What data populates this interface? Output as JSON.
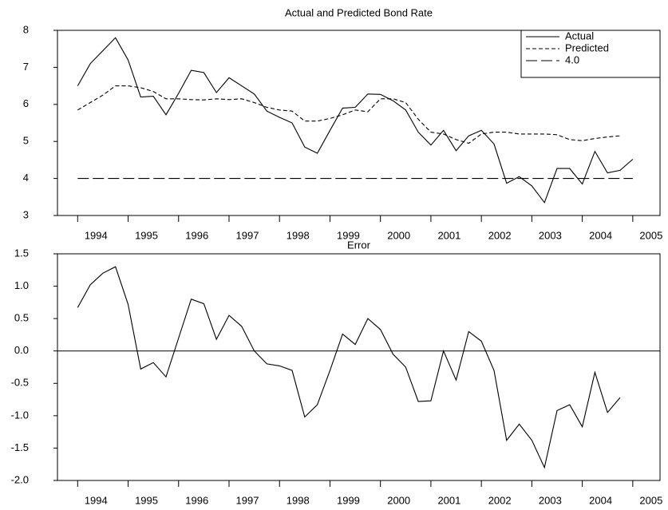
{
  "chart_data": [
    {
      "type": "line",
      "title": "Actual and Predicted Bond Rate",
      "x": [
        1994,
        1994.25,
        1994.5,
        1994.75,
        1995,
        1995.25,
        1995.5,
        1995.75,
        1996,
        1996.25,
        1996.5,
        1996.75,
        1997,
        1997.25,
        1997.5,
        1997.75,
        1998,
        1998.25,
        1998.5,
        1998.75,
        1999,
        1999.25,
        1999.5,
        1999.75,
        2000,
        2000.25,
        2000.5,
        2000.75,
        2001,
        2001.25,
        2001.5,
        2001.75,
        2002,
        2002.25,
        2002.5,
        2002.75,
        2003,
        2003.25,
        2003.5,
        2003.75,
        2004,
        2004.25,
        2004.5,
        2004.75,
        2005
      ],
      "series": [
        {
          "name": "Actual",
          "color": "#000000",
          "dash": "solid",
          "values": [
            6.5,
            7.1,
            7.45,
            7.8,
            7.2,
            6.2,
            6.22,
            5.72,
            6.3,
            6.92,
            6.86,
            6.32,
            6.72,
            6.5,
            6.28,
            5.82,
            5.65,
            5.5,
            4.85,
            4.68,
            5.3,
            5.9,
            5.92,
            6.28,
            6.27,
            6.1,
            5.85,
            5.25,
            4.9,
            5.3,
            4.75,
            5.15,
            5.3,
            4.93,
            3.87,
            4.05,
            3.8,
            3.35,
            4.27,
            4.27,
            3.85,
            4.73,
            4.15,
            4.22,
            4.52
          ]
        },
        {
          "name": "Predicted",
          "color": "#000000",
          "dash": "dashed",
          "values": [
            5.85,
            6.05,
            6.25,
            6.5,
            6.5,
            6.45,
            6.35,
            6.15,
            6.15,
            6.13,
            6.12,
            6.15,
            6.13,
            6.15,
            6.05,
            5.92,
            5.85,
            5.82,
            5.55,
            5.55,
            5.62,
            5.72,
            5.85,
            5.8,
            6.15,
            6.15,
            6.05,
            5.6,
            5.25,
            5.2,
            5.05,
            4.95,
            5.2,
            5.25,
            5.25,
            5.2,
            5.2,
            5.2,
            5.18,
            5.05,
            5.02,
            5.08,
            5.12,
            5.15,
            null
          ]
        },
        {
          "name": "4.0",
          "color": "#000000",
          "dash": "longdash",
          "values": [
            4,
            4,
            4,
            4,
            4,
            4,
            4,
            4,
            4,
            4,
            4,
            4,
            4,
            4,
            4,
            4,
            4,
            4,
            4,
            4,
            4,
            4,
            4,
            4,
            4,
            4,
            4,
            4,
            4,
            4,
            4,
            4,
            4,
            4,
            4,
            4,
            4,
            4,
            4,
            4,
            4,
            4,
            4,
            4,
            4
          ]
        }
      ],
      "xlim": [
        1993.6,
        2005.54
      ],
      "xticks": [
        1994,
        1995,
        1996,
        1997,
        1998,
        1999,
        2000,
        2001,
        2002,
        2003,
        2004,
        2005
      ],
      "ylim": [
        3,
        8
      ],
      "yticks": [
        3,
        4,
        5,
        6,
        7,
        8
      ],
      "legend": "top-right"
    },
    {
      "type": "line",
      "title": "Error",
      "x": [
        1994,
        1994.25,
        1994.5,
        1994.75,
        1995,
        1995.25,
        1995.5,
        1995.75,
        1996,
        1996.25,
        1996.5,
        1996.75,
        1997,
        1997.25,
        1997.5,
        1997.75,
        1998,
        1998.25,
        1998.5,
        1998.75,
        1999,
        1999.25,
        1999.5,
        1999.75,
        2000,
        2000.25,
        2000.5,
        2000.75,
        2001,
        2001.25,
        2001.5,
        2001.75,
        2002,
        2002.25,
        2002.5,
        2002.75,
        2003,
        2003.25,
        2003.5,
        2003.75,
        2004,
        2004.25,
        2004.5,
        2004.75
      ],
      "series": [
        {
          "color": "#000000",
          "dash": "solid",
          "values": [
            0.67,
            1.02,
            1.2,
            1.3,
            0.72,
            -0.28,
            -0.18,
            -0.4,
            0.2,
            0.8,
            0.73,
            0.18,
            0.55,
            0.38,
            0,
            -0.2,
            -0.23,
            -0.3,
            -1.02,
            -0.83,
            -0.3,
            0.26,
            0.1,
            0.5,
            0.33,
            -0.05,
            -0.25,
            -0.78,
            -0.77,
            0,
            -0.45,
            0.3,
            0.15,
            -0.3,
            -1.38,
            -1.13,
            -1.38,
            -1.8,
            -0.92,
            -0.83,
            -1.17,
            -0.33,
            -0.95,
            -0.72
          ]
        }
      ],
      "xlim": [
        1993.6,
        2005.54
      ],
      "xticks": [
        1994,
        1995,
        1996,
        1997,
        1998,
        1999,
        2000,
        2001,
        2002,
        2003,
        2004,
        2005
      ],
      "ylim": [
        -2,
        1.5
      ],
      "yticks": [
        {
          "value": -2,
          "label": "-2.0"
        },
        {
          "value": -1.5,
          "label": "-1.5"
        },
        {
          "value": -1,
          "label": "-1.0"
        },
        {
          "value": -0.5,
          "label": "-0.5"
        },
        {
          "value": 0,
          "label": "0.0"
        },
        {
          "value": 0.5,
          "label": "0.5"
        },
        {
          "value": 1,
          "label": "1.0"
        },
        {
          "value": 1.5,
          "label": "1.5"
        }
      ],
      "zero_line": true
    }
  ]
}
